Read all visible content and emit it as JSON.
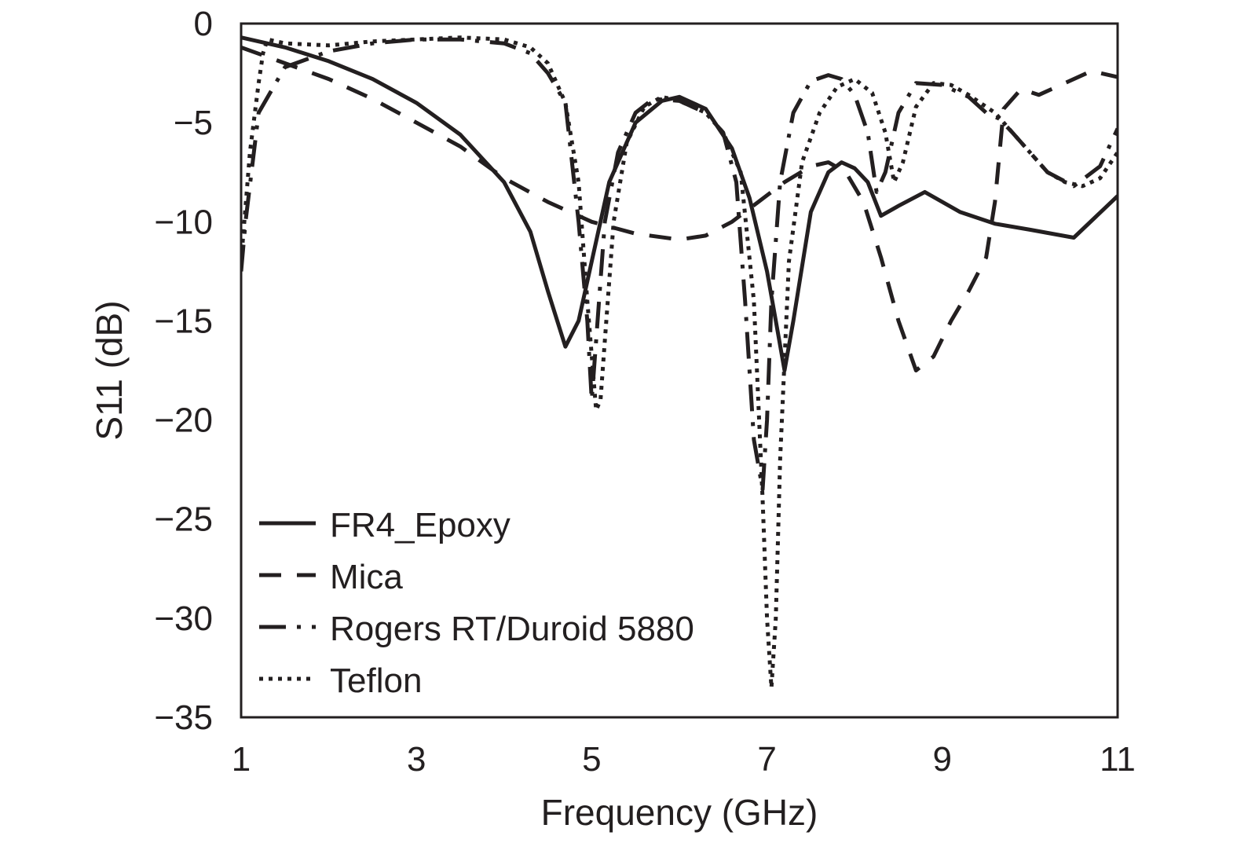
{
  "chart_data": {
    "type": "line",
    "title": "",
    "xlabel": "Frequency (GHz)",
    "ylabel": "S11 (dB)",
    "xlim": [
      1,
      11
    ],
    "ylim": [
      -35,
      0
    ],
    "xticks": [
      1,
      3,
      5,
      7,
      9,
      11
    ],
    "yticks": [
      0,
      -5,
      -10,
      -15,
      -20,
      -25,
      -30,
      -35
    ],
    "xtick_labels": [
      "1",
      "3",
      "5",
      "7",
      "9",
      "11"
    ],
    "ytick_labels": [
      "0",
      "−5",
      "−10",
      "−15",
      "−20",
      "−25",
      "−30",
      "−35"
    ],
    "grid": false,
    "legend_position": "bottom-left",
    "series": [
      {
        "name": "FR4_Epoxy",
        "dash": "solid",
        "x": [
          1,
          1.5,
          2,
          2.5,
          3,
          3.5,
          4,
          4.3,
          4.5,
          4.7,
          4.85,
          5.0,
          5.2,
          5.5,
          5.8,
          6.0,
          6.3,
          6.6,
          6.8,
          7.0,
          7.1,
          7.2,
          7.3,
          7.5,
          7.7,
          7.85,
          8.0,
          8.15,
          8.3,
          8.5,
          8.8,
          9.2,
          9.6,
          10.0,
          10.5,
          11.0
        ],
        "y": [
          -0.7,
          -1.2,
          -1.9,
          -2.8,
          -4.0,
          -5.6,
          -8.0,
          -10.5,
          -13.5,
          -16.3,
          -15.0,
          -12.0,
          -8.0,
          -5.0,
          -3.9,
          -3.7,
          -4.3,
          -6.3,
          -8.8,
          -12.5,
          -15.0,
          -17.5,
          -15.0,
          -9.5,
          -7.5,
          -7.0,
          -7.3,
          -8.0,
          -9.7,
          -9.2,
          -8.5,
          -9.5,
          -10.1,
          -10.4,
          -10.8,
          -8.7
        ]
      },
      {
        "name": "Mica",
        "dash": "dashed",
        "x": [
          1,
          1.5,
          2,
          2.5,
          3,
          3.5,
          4,
          4.5,
          5,
          5.5,
          6,
          6.3,
          6.6,
          6.9,
          7.2,
          7.5,
          7.7,
          7.9,
          8.1,
          8.3,
          8.5,
          8.7,
          8.9,
          9.1,
          9.3,
          9.5,
          9.6,
          9.7,
          9.9,
          10.1,
          10.4,
          10.7,
          11.0
        ],
        "y": [
          -1.2,
          -2.0,
          -2.8,
          -3.8,
          -5.0,
          -6.2,
          -7.8,
          -9.0,
          -10.0,
          -10.6,
          -10.9,
          -10.7,
          -10.0,
          -9.0,
          -8.0,
          -7.2,
          -7.0,
          -7.5,
          -9.0,
          -11.8,
          -15.0,
          -17.5,
          -16.8,
          -15.0,
          -13.5,
          -11.8,
          -9.0,
          -4.3,
          -3.3,
          -3.6,
          -3.0,
          -2.4,
          -2.7
        ]
      },
      {
        "name": "Rogers RT/Duroid 5880",
        "dash": "dash-dot",
        "x": [
          1,
          1.05,
          1.2,
          1.5,
          2,
          2.5,
          3,
          3.5,
          4,
          4.3,
          4.5,
          4.7,
          4.85,
          4.95,
          5.0,
          5.05,
          5.15,
          5.3,
          5.5,
          5.7,
          6.0,
          6.3,
          6.5,
          6.65,
          6.75,
          6.85,
          6.95,
          7.0,
          7.05,
          7.15,
          7.3,
          7.5,
          7.7,
          7.85,
          8.0,
          8.15,
          8.25,
          8.35,
          8.5,
          8.7,
          9.0,
          9.3,
          9.5,
          9.65,
          9.8,
          10.0,
          10.2,
          10.5,
          10.8,
          11.0
        ],
        "y": [
          -12.5,
          -10.0,
          -4.5,
          -2.2,
          -1.4,
          -1.0,
          -0.8,
          -0.8,
          -1.0,
          -1.5,
          -2.5,
          -4.0,
          -10.0,
          -15.0,
          -19.0,
          -16.0,
          -10.0,
          -6.5,
          -4.5,
          -3.8,
          -3.9,
          -4.5,
          -5.5,
          -8.0,
          -14.0,
          -21.0,
          -23.5,
          -20.0,
          -14.0,
          -8.0,
          -4.5,
          -2.9,
          -2.6,
          -2.8,
          -3.6,
          -5.5,
          -8.5,
          -7.5,
          -4.5,
          -3.0,
          -3.1,
          -3.7,
          -4.5,
          -4.8,
          -5.5,
          -6.5,
          -7.5,
          -8.2,
          -7.2,
          -5.3
        ]
      },
      {
        "name": "Teflon",
        "dash": "dotted",
        "x": [
          1.0,
          1.1,
          1.2,
          1.25,
          1.3,
          1.5,
          2,
          2.5,
          3,
          3.5,
          4,
          4.3,
          4.5,
          4.7,
          4.85,
          4.95,
          5.05,
          5.1,
          5.15,
          5.25,
          5.4,
          5.6,
          5.8,
          6.0,
          6.3,
          6.5,
          6.7,
          6.85,
          6.95,
          7.0,
          7.05,
          7.1,
          7.15,
          7.25,
          7.4,
          7.6,
          7.8,
          8.0,
          8.2,
          8.35,
          8.45,
          8.55,
          8.7,
          8.9,
          9.1,
          9.3,
          9.6,
          9.8,
          10.0,
          10.2,
          10.4,
          10.6,
          10.8,
          11.0
        ],
        "y": [
          -12.0,
          -6.5,
          -3.0,
          -1.5,
          -0.8,
          -1.0,
          -1.1,
          -0.9,
          -0.8,
          -0.7,
          -0.8,
          -1.2,
          -2.0,
          -4.0,
          -8.0,
          -14.0,
          -19.5,
          -19.0,
          -16.0,
          -10.0,
          -6.0,
          -4.2,
          -3.7,
          -3.9,
          -4.5,
          -5.5,
          -7.5,
          -14.0,
          -24.0,
          -30.0,
          -33.5,
          -30.0,
          -22.0,
          -12.0,
          -7.0,
          -4.5,
          -3.2,
          -2.8,
          -3.5,
          -5.5,
          -8.0,
          -7.0,
          -4.2,
          -3.0,
          -3.1,
          -3.6,
          -4.5,
          -5.5,
          -6.5,
          -7.5,
          -8.0,
          -8.2,
          -7.8,
          -6.5
        ]
      }
    ]
  }
}
